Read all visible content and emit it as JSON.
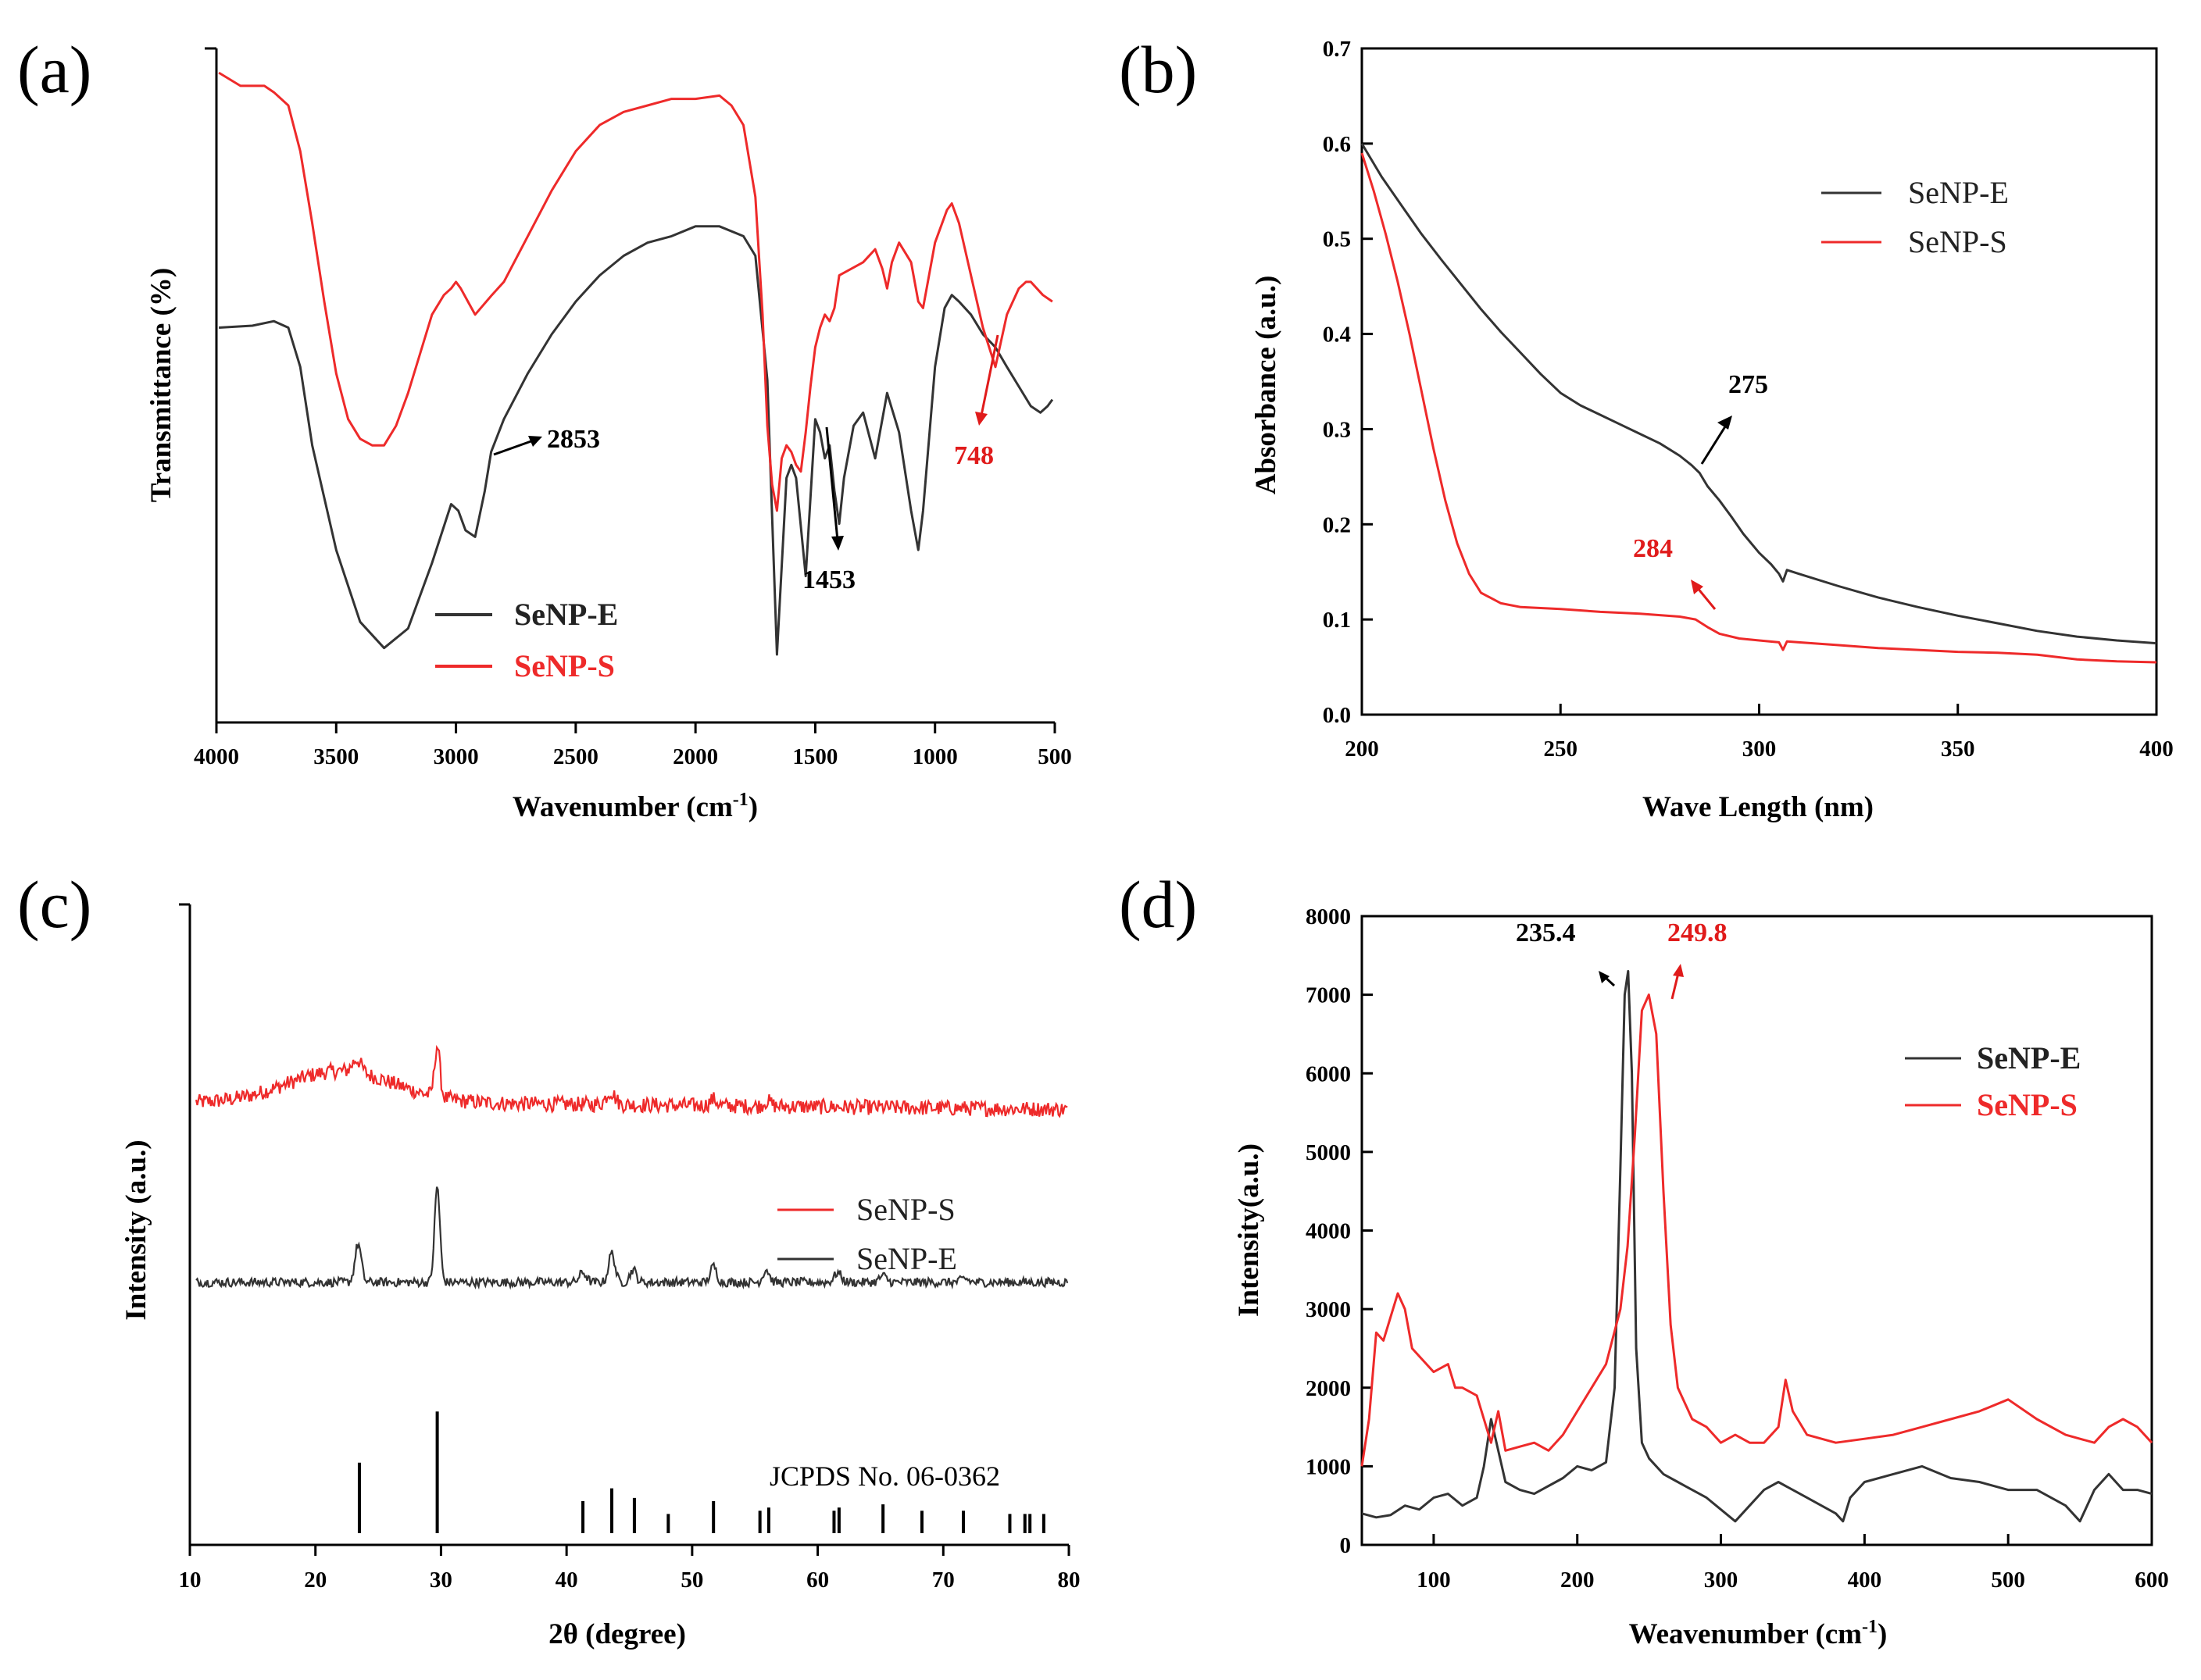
{
  "colors": {
    "black_series": "#333333",
    "red_series": "#ee2a2a",
    "axis": "#000000",
    "arrow_black": "#000000",
    "arrow_red": "#e01b1b"
  },
  "chart_data": [
    {
      "id": "a",
      "panel_label": "(a)",
      "type": "line",
      "title": "",
      "xlabel": "Wavenumber (cm",
      "xlabel_sup": "-1",
      "xlabel_close": ")",
      "ylabel": "Transmittance (%)",
      "xlim": [
        4000,
        500
      ],
      "ylim": [
        0,
        100
      ],
      "xticks": [
        4000,
        3500,
        3000,
        2500,
        2000,
        1500,
        1000,
        500
      ],
      "yticks": [],
      "legend": [
        {
          "name": "SeNP-E",
          "color": "#333333"
        },
        {
          "name": "SeNP-S",
          "color": "#ee2a2a"
        }
      ],
      "series": [
        {
          "name": "SeNP-E",
          "color": "#333333",
          "x": [
            3990,
            3850,
            3760,
            3700,
            3650,
            3600,
            3500,
            3400,
            3300,
            3200,
            3100,
            3020,
            2990,
            2960,
            2920,
            2880,
            2853,
            2800,
            2700,
            2600,
            2500,
            2400,
            2300,
            2200,
            2100,
            2000,
            1900,
            1800,
            1750,
            1700,
            1660,
            1620,
            1600,
            1580,
            1540,
            1500,
            1480,
            1460,
            1440,
            1420,
            1400,
            1380,
            1340,
            1300,
            1250,
            1220,
            1200,
            1150,
            1100,
            1070,
            1050,
            1000,
            960,
            930,
            900,
            850,
            800,
            748,
            700,
            650,
            600,
            560,
            530,
            510
          ],
          "y": [
            58,
            58.3,
            59,
            58,
            52,
            40,
            24,
            13,
            9,
            12,
            22,
            31,
            30,
            27,
            26,
            33,
            39,
            44,
            51,
            57,
            62,
            66,
            69,
            71,
            72,
            73.5,
            73.5,
            72,
            69,
            50,
            8,
            35,
            37,
            35,
            20,
            44,
            42,
            38,
            40,
            33,
            28,
            35,
            43,
            45,
            38,
            44,
            48,
            42,
            30,
            24,
            30,
            52,
            61,
            63,
            62,
            60,
            57,
            55,
            52,
            49,
            46,
            45,
            46,
            47
          ]
        },
        {
          "name": "SeNP-S",
          "color": "#ee2a2a",
          "x": [
            3990,
            3900,
            3800,
            3760,
            3700,
            3650,
            3600,
            3550,
            3500,
            3450,
            3400,
            3350,
            3300,
            3250,
            3200,
            3150,
            3100,
            3050,
            3020,
            3000,
            2980,
            2950,
            2920,
            2850,
            2800,
            2700,
            2600,
            2500,
            2400,
            2300,
            2200,
            2100,
            2000,
            1900,
            1850,
            1800,
            1750,
            1720,
            1700,
            1680,
            1660,
            1640,
            1620,
            1600,
            1580,
            1560,
            1540,
            1520,
            1500,
            1480,
            1460,
            1440,
            1420,
            1400,
            1300,
            1250,
            1220,
            1200,
            1180,
            1150,
            1100,
            1070,
            1050,
            1000,
            950,
            930,
            900,
            850,
            800,
            748,
            700,
            650,
            620,
            600,
            550,
            510
          ],
          "y": [
            97,
            95,
            95,
            94,
            92,
            85,
            74,
            62,
            51,
            44,
            41,
            40,
            40,
            43,
            48,
            54,
            60,
            63,
            64,
            65,
            64,
            62,
            60,
            63,
            65,
            72,
            79,
            85,
            89,
            91,
            92,
            93,
            93,
            93.5,
            92,
            89,
            78,
            60,
            43,
            34,
            30,
            38,
            40,
            39,
            37,
            36,
            42,
            49,
            55,
            58,
            60,
            59,
            61,
            66,
            68,
            70,
            67,
            64,
            68,
            71,
            68,
            62,
            61,
            71,
            76,
            77,
            74,
            66,
            58,
            52,
            60,
            64,
            65,
            65,
            63,
            62
          ]
        }
      ],
      "annotations": [
        {
          "text": "2853",
          "color": "black"
        },
        {
          "text": "1453",
          "color": "black"
        },
        {
          "text": "748",
          "color": "red"
        }
      ]
    },
    {
      "id": "b",
      "panel_label": "(b)",
      "type": "line",
      "title": "",
      "xlabel": "Wave Length (nm)",
      "ylabel": "Absorbance (a.u.)",
      "xlim": [
        200,
        400
      ],
      "ylim": [
        0.0,
        0.7
      ],
      "xticks": [
        200,
        250,
        300,
        350,
        400
      ],
      "yticks": [
        "0.0",
        "0.1",
        "0.2",
        "0.3",
        "0.4",
        "0.5",
        "0.6",
        "0.7"
      ],
      "legend": [
        {
          "name": "SeNP-E",
          "color": "#333333"
        },
        {
          "name": "SeNP-S",
          "color": "#ee2a2a"
        }
      ],
      "series": [
        {
          "name": "SeNP-E",
          "color": "#333333",
          "x": [
            200,
            205,
            210,
            215,
            220,
            225,
            230,
            235,
            240,
            245,
            250,
            255,
            260,
            265,
            270,
            275,
            280,
            283,
            285,
            287,
            290,
            293,
            296,
            300,
            303,
            305,
            306,
            307,
            310,
            320,
            330,
            340,
            350,
            360,
            370,
            380,
            390,
            400
          ],
          "y": [
            0.6,
            0.565,
            0.535,
            0.505,
            0.478,
            0.452,
            0.426,
            0.402,
            0.38,
            0.358,
            0.338,
            0.325,
            0.315,
            0.305,
            0.295,
            0.285,
            0.272,
            0.262,
            0.254,
            0.24,
            0.225,
            0.208,
            0.19,
            0.17,
            0.158,
            0.148,
            0.14,
            0.152,
            0.148,
            0.135,
            0.123,
            0.113,
            0.104,
            0.096,
            0.088,
            0.082,
            0.078,
            0.075
          ]
        },
        {
          "name": "SeNP-S",
          "color": "#ee2a2a",
          "x": [
            200,
            203,
            206,
            209,
            212,
            215,
            218,
            221,
            224,
            227,
            230,
            235,
            240,
            250,
            260,
            270,
            280,
            284,
            287,
            290,
            295,
            300,
            305,
            306,
            307,
            310,
            320,
            330,
            340,
            350,
            360,
            370,
            380,
            390,
            400
          ],
          "y": [
            0.59,
            0.55,
            0.505,
            0.455,
            0.4,
            0.34,
            0.28,
            0.225,
            0.18,
            0.148,
            0.128,
            0.117,
            0.113,
            0.111,
            0.108,
            0.106,
            0.103,
            0.1,
            0.092,
            0.085,
            0.08,
            0.078,
            0.076,
            0.068,
            0.077,
            0.076,
            0.073,
            0.07,
            0.068,
            0.066,
            0.065,
            0.063,
            0.058,
            0.056,
            0.055
          ]
        }
      ],
      "annotations": [
        {
          "text": "275",
          "color": "black"
        },
        {
          "text": "284",
          "color": "red"
        }
      ]
    },
    {
      "id": "c",
      "panel_label": "(c)",
      "type": "line",
      "title": "",
      "xlabel": "2θ (degree)",
      "ylabel": "Intensity (a.u.)",
      "xlim": [
        10,
        80
      ],
      "ylim": [
        0,
        100
      ],
      "xticks": [
        10,
        20,
        30,
        40,
        50,
        60,
        70,
        80
      ],
      "yticks": [],
      "legend": [
        {
          "name": "SeNP-S",
          "color": "#ee2a2a"
        },
        {
          "name": "SeNP-E",
          "color": "#333333"
        }
      ],
      "series": [
        {
          "name": "SeNP-S",
          "color": "#ee2a2a",
          "baseline": 69,
          "peaks": [
            {
              "x": 22,
              "h": 5,
              "w": 6
            },
            {
              "x": 23.3,
              "h": 2,
              "w": 0.5
            },
            {
              "x": 29.7,
              "h": 8,
              "w": 0.3
            },
            {
              "x": 43.5,
              "h": 2,
              "w": 0.5
            },
            {
              "x": 51.7,
              "h": 1,
              "w": 0.4
            },
            {
              "x": 56,
              "h": 0.8,
              "w": 0.4
            }
          ]
        },
        {
          "name": "SeNP-E",
          "color": "#333333",
          "baseline": 41,
          "peaks": [
            {
              "x": 23.4,
              "h": 6,
              "w": 0.35
            },
            {
              "x": 29.7,
              "h": 15,
              "w": 0.3
            },
            {
              "x": 41.3,
              "h": 1.5,
              "w": 0.4
            },
            {
              "x": 43.6,
              "h": 4.6,
              "w": 0.35
            },
            {
              "x": 45.3,
              "h": 2,
              "w": 0.35
            },
            {
              "x": 51.7,
              "h": 2.5,
              "w": 0.35
            },
            {
              "x": 55.9,
              "h": 2,
              "w": 0.35
            },
            {
              "x": 61.6,
              "h": 1.5,
              "w": 0.4
            },
            {
              "x": 65.2,
              "h": 1,
              "w": 0.4
            },
            {
              "x": 71.7,
              "h": 0.6,
              "w": 0.4
            }
          ]
        },
        {
          "name": "JCPDS No. 06-0362",
          "type": "stick",
          "color": "#000000",
          "x": [
            23.5,
            29.7,
            41.3,
            43.6,
            45.4,
            48.1,
            51.7,
            55.4,
            56.1,
            61.3,
            61.7,
            65.2,
            68.3,
            71.6,
            75.3,
            76.5,
            76.9,
            78.0
          ],
          "y": [
            11,
            19,
            5,
            7,
            5.5,
            3,
            5,
            3.5,
            4,
            3.5,
            4,
            4.5,
            3.5,
            3.5,
            3,
            3,
            3,
            3
          ]
        }
      ],
      "reference_label": "JCPDS No. 06-0362"
    },
    {
      "id": "d",
      "panel_label": "(d)",
      "type": "line",
      "title": "",
      "xlabel": "Weavenumber (cm",
      "xlabel_sup": "-1",
      "xlabel_close": ")",
      "ylabel": "Intensity(a.u.)",
      "xlim": [
        50,
        600
      ],
      "ylim": [
        0,
        8000
      ],
      "xticks": [
        100,
        200,
        300,
        400,
        500,
        600
      ],
      "yticks": [
        0,
        1000,
        2000,
        3000,
        4000,
        5000,
        6000,
        7000,
        8000
      ],
      "legend": [
        {
          "name": "SeNP-E",
          "color": "#333333"
        },
        {
          "name": "SeNP-S",
          "color": "#ee2a2a"
        }
      ],
      "series": [
        {
          "name": "SeNP-E",
          "color": "#333333",
          "x": [
            50,
            60,
            70,
            80,
            90,
            100,
            110,
            120,
            130,
            135,
            140,
            145,
            150,
            160,
            170,
            180,
            190,
            200,
            210,
            220,
            226,
            230,
            233,
            235.4,
            238,
            241,
            245,
            250,
            260,
            270,
            280,
            290,
            300,
            310,
            320,
            330,
            340,
            350,
            360,
            370,
            380,
            385,
            390,
            400,
            420,
            440,
            460,
            480,
            500,
            520,
            540,
            550,
            560,
            570,
            580,
            590,
            600
          ],
          "y": [
            400,
            350,
            380,
            500,
            450,
            600,
            650,
            500,
            600,
            1000,
            1600,
            1200,
            800,
            700,
            650,
            750,
            850,
            1000,
            950,
            1050,
            2000,
            4800,
            7000,
            7300,
            6000,
            2500,
            1300,
            1100,
            900,
            800,
            700,
            600,
            450,
            300,
            500,
            700,
            800,
            700,
            600,
            500,
            400,
            300,
            600,
            800,
            900,
            1000,
            850,
            800,
            700,
            700,
            500,
            300,
            700,
            900,
            700,
            700,
            650
          ]
        },
        {
          "name": "SeNP-S",
          "color": "#ee2a2a",
          "x": [
            50,
            55,
            60,
            65,
            70,
            75,
            80,
            85,
            90,
            100,
            110,
            115,
            120,
            130,
            140,
            145,
            150,
            160,
            170,
            180,
            190,
            200,
            210,
            220,
            230,
            235,
            240,
            245,
            249.8,
            255,
            260,
            265,
            270,
            280,
            290,
            300,
            310,
            320,
            330,
            340,
            345,
            350,
            360,
            380,
            400,
            420,
            440,
            460,
            480,
            500,
            520,
            540,
            560,
            570,
            580,
            590,
            600
          ],
          "y": [
            1000,
            1600,
            2700,
            2600,
            2900,
            3200,
            3000,
            2500,
            2400,
            2200,
            2300,
            2000,
            2000,
            1900,
            1300,
            1700,
            1200,
            1250,
            1300,
            1200,
            1400,
            1700,
            2000,
            2300,
            3000,
            3800,
            5200,
            6800,
            7000,
            6500,
            4500,
            2800,
            2000,
            1600,
            1500,
            1300,
            1400,
            1300,
            1300,
            1500,
            2100,
            1700,
            1400,
            1300,
            1350,
            1400,
            1500,
            1600,
            1700,
            1850,
            1600,
            1400,
            1300,
            1500,
            1600,
            1500,
            1300
          ]
        }
      ],
      "annotations": [
        {
          "text": "235.4",
          "color": "black"
        },
        {
          "text": "249.8",
          "color": "red"
        }
      ]
    }
  ]
}
